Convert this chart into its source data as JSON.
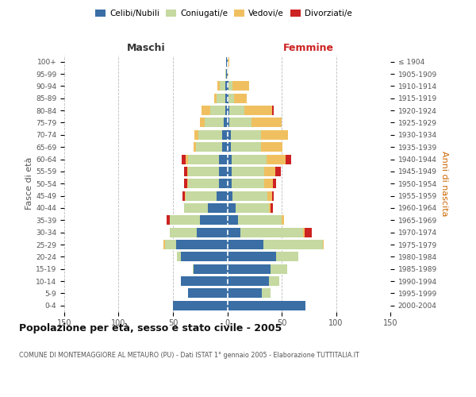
{
  "age_groups": [
    "0-4",
    "5-9",
    "10-14",
    "15-19",
    "20-24",
    "25-29",
    "30-34",
    "35-39",
    "40-44",
    "45-49",
    "50-54",
    "55-59",
    "60-64",
    "65-69",
    "70-74",
    "75-79",
    "80-84",
    "85-89",
    "90-94",
    "95-99",
    "100+"
  ],
  "birth_years": [
    "2000-2004",
    "1995-1999",
    "1990-1994",
    "1985-1989",
    "1980-1984",
    "1975-1979",
    "1970-1974",
    "1965-1969",
    "1960-1964",
    "1955-1959",
    "1950-1954",
    "1945-1949",
    "1940-1944",
    "1935-1939",
    "1930-1934",
    "1925-1929",
    "1920-1924",
    "1915-1919",
    "1910-1914",
    "1905-1909",
    "≤ 1904"
  ],
  "male_celibi": [
    50,
    36,
    43,
    31,
    43,
    47,
    28,
    25,
    18,
    10,
    8,
    8,
    8,
    5,
    5,
    3,
    2,
    2,
    2,
    1,
    1
  ],
  "male_coniugati": [
    0,
    0,
    0,
    1,
    3,
    10,
    25,
    28,
    22,
    28,
    28,
    28,
    28,
    24,
    22,
    18,
    14,
    8,
    5,
    1,
    0
  ],
  "male_vedovi": [
    0,
    0,
    0,
    0,
    0,
    2,
    0,
    0,
    0,
    1,
    1,
    1,
    2,
    2,
    3,
    4,
    8,
    2,
    2,
    0,
    0
  ],
  "male_divorziati": [
    0,
    0,
    0,
    0,
    0,
    0,
    0,
    3,
    0,
    2,
    3,
    3,
    4,
    0,
    0,
    0,
    0,
    0,
    0,
    0,
    0
  ],
  "female_celibi": [
    72,
    32,
    38,
    40,
    45,
    33,
    12,
    10,
    8,
    5,
    4,
    4,
    4,
    3,
    3,
    2,
    2,
    1,
    1,
    0,
    0
  ],
  "female_coniugati": [
    0,
    8,
    10,
    15,
    20,
    55,
    58,
    40,
    30,
    32,
    30,
    30,
    32,
    28,
    28,
    20,
    14,
    5,
    4,
    0,
    0
  ],
  "female_vedovi": [
    0,
    0,
    0,
    0,
    0,
    1,
    1,
    2,
    2,
    4,
    8,
    10,
    18,
    20,
    25,
    28,
    25,
    12,
    15,
    1,
    2
  ],
  "female_divorziati": [
    0,
    0,
    0,
    0,
    0,
    0,
    7,
    0,
    2,
    2,
    3,
    5,
    5,
    0,
    0,
    0,
    2,
    0,
    0,
    0,
    0
  ],
  "colors": {
    "celibi": "#3a6ea5",
    "coniugati": "#c5d9a0",
    "vedovi": "#f0c060",
    "divorziati": "#cc2222"
  },
  "title": "Popolazione per età, sesso e stato civile - 2005",
  "subtitle": "COMUNE DI MONTEMAGGIORE AL METAURO (PU) - Dati ISTAT 1° gennaio 2005 - Elaborazione TUTTITALIA.IT",
  "ylabel_left": "Fasce di età",
  "ylabel_right": "Anni di nascita",
  "label_maschi": "Maschi",
  "label_femmine": "Femmine",
  "xlim": 150,
  "bg_color": "#ffffff",
  "grid_color": "#bbbbbb",
  "bar_height": 0.78
}
